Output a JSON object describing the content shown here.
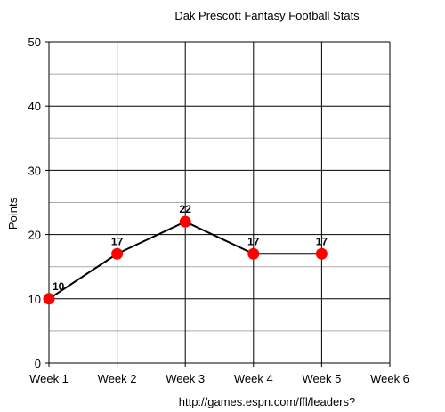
{
  "chart_data": {
    "type": "line",
    "title": "Dak Prescott Fantasy Football Stats",
    "xlabel": "",
    "ylabel": "Points",
    "categories": [
      "Week 1",
      "Week 2",
      "Week 3",
      "Week 4",
      "Week 5",
      "Week 6"
    ],
    "series": [
      {
        "values": [
          10,
          17,
          22,
          17,
          17,
          null
        ]
      }
    ],
    "data_labels": [
      "10",
      "17",
      "22",
      "17",
      "17"
    ],
    "ylim": [
      0,
      50
    ],
    "y_ticks": [
      0,
      10,
      20,
      30,
      40,
      50
    ],
    "y_minor_step": 5,
    "grid": true,
    "legend": "none",
    "source_text": "http://games.espn.com/ffl/leaders?",
    "colors": {
      "marker": "#ff0000",
      "line": "#000000",
      "grid_major": "#000000",
      "grid_minor": "#aaaaaa"
    }
  }
}
